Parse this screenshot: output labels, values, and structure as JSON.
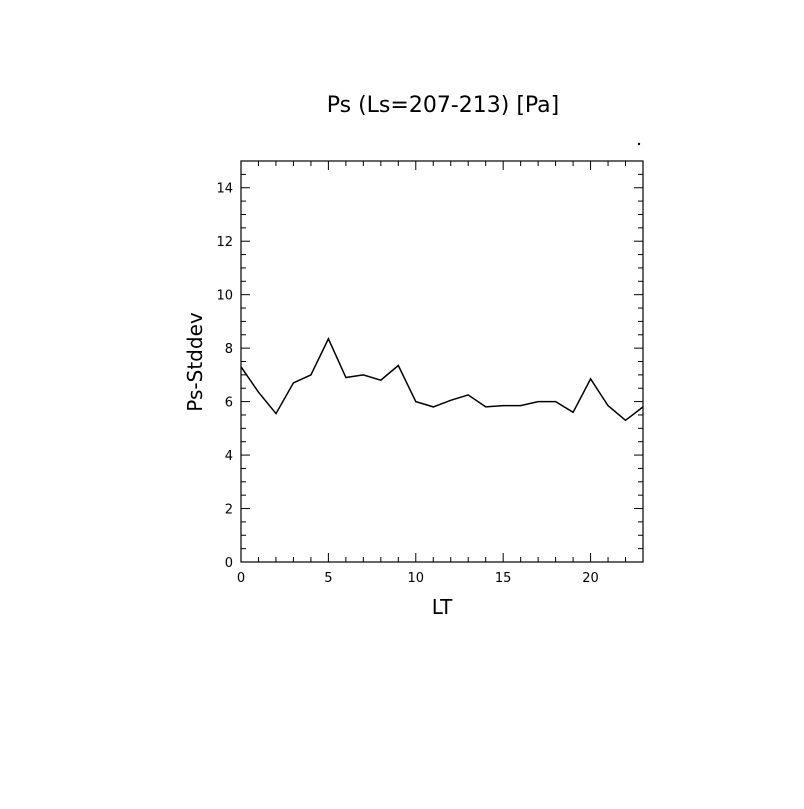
{
  "chart_data": {
    "type": "line",
    "title": "Ps (Ls=207-213) [Pa]",
    "xlabel": "LT",
    "ylabel": "Ps-Stddev",
    "xlim": [
      0,
      23
    ],
    "ylim": [
      0,
      15
    ],
    "x_ticks": [
      0,
      5,
      10,
      15,
      20
    ],
    "x_tick_labels": [
      "0",
      "5",
      "10",
      "15",
      "20"
    ],
    "y_ticks": [
      0,
      2,
      4,
      6,
      8,
      10,
      12,
      14
    ],
    "y_tick_labels": [
      "0",
      "2",
      "4",
      "6",
      "8",
      "10",
      "12",
      "14"
    ],
    "grid": false,
    "series": [
      {
        "x": [
          0,
          1,
          2,
          3,
          4,
          5,
          6,
          7,
          8,
          9,
          10,
          11,
          12,
          13,
          14,
          15,
          16,
          17,
          18,
          19,
          20,
          21,
          22,
          23
        ],
        "values": [
          7.3,
          6.35,
          5.55,
          6.7,
          7.0,
          8.35,
          6.9,
          7.0,
          6.8,
          7.35,
          6.0,
          5.8,
          6.05,
          6.25,
          5.8,
          5.85,
          5.85,
          6.0,
          6.0,
          5.6,
          6.85,
          5.85,
          5.3,
          5.8
        ]
      }
    ]
  }
}
